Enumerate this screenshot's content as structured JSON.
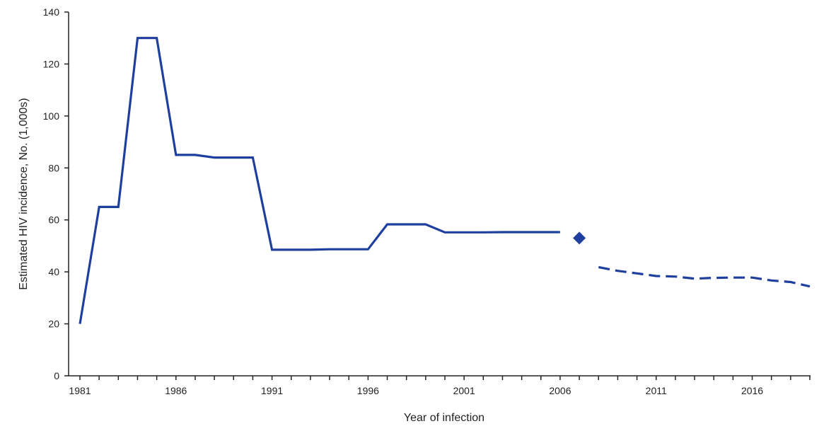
{
  "chart_data": {
    "type": "line",
    "xlabel": "Year of infection",
    "ylabel": "Estimated HIV incidence, No. (1,000s)",
    "xlim": [
      1981,
      2019
    ],
    "ylim": [
      0,
      140
    ],
    "x_ticks": [
      1981,
      1986,
      1991,
      1996,
      2001,
      2006,
      2011,
      2016
    ],
    "x_tick_labels": [
      "1981",
      "1986",
      "1991",
      "1996",
      "2001",
      "2006",
      "2011",
      "2016"
    ],
    "y_ticks": [
      0,
      20,
      40,
      60,
      80,
      100,
      120,
      140
    ],
    "y_tick_labels": [
      "0",
      "20",
      "40",
      "60",
      "80",
      "100",
      "120",
      "140"
    ],
    "grid": false,
    "series": [
      {
        "style": "solid",
        "color": "#1f3f9e",
        "points": [
          {
            "x": 1981,
            "y": 20
          },
          {
            "x": 1982,
            "y": 65
          },
          {
            "x": 1983,
            "y": 65
          },
          {
            "x": 1984,
            "y": 130
          },
          {
            "x": 1985,
            "y": 130
          },
          {
            "x": 1986,
            "y": 85
          },
          {
            "x": 1987,
            "y": 85
          },
          {
            "x": 1988,
            "y": 84
          },
          {
            "x": 1989,
            "y": 84
          },
          {
            "x": 1990,
            "y": 84
          },
          {
            "x": 1991,
            "y": 48.5
          },
          {
            "x": 1992,
            "y": 48.5
          },
          {
            "x": 1993,
            "y": 48.5
          },
          {
            "x": 1994,
            "y": 48.7
          },
          {
            "x": 1995,
            "y": 48.7
          },
          {
            "x": 1996,
            "y": 48.7
          },
          {
            "x": 1997,
            "y": 58.3
          },
          {
            "x": 1998,
            "y": 58.3
          },
          {
            "x": 1999,
            "y": 58.3
          },
          {
            "x": 2000,
            "y": 55.2
          },
          {
            "x": 2001,
            "y": 55.2
          },
          {
            "x": 2002,
            "y": 55.2
          },
          {
            "x": 2003,
            "y": 55.3
          },
          {
            "x": 2004,
            "y": 55.3
          },
          {
            "x": 2005,
            "y": 55.3
          },
          {
            "x": 2006,
            "y": 55.3
          }
        ]
      },
      {
        "style": "marker",
        "marker": "diamond",
        "color": "#1f3f9e",
        "points": [
          {
            "x": 2007,
            "y": 53
          }
        ]
      },
      {
        "style": "dashed",
        "color": "#1f3f9e",
        "points": [
          {
            "x": 2008,
            "y": 41.8
          },
          {
            "x": 2009,
            "y": 40.4
          },
          {
            "x": 2010,
            "y": 39.4
          },
          {
            "x": 2011,
            "y": 38.4
          },
          {
            "x": 2012,
            "y": 38.2
          },
          {
            "x": 2013,
            "y": 37.4
          },
          {
            "x": 2014,
            "y": 37.7
          },
          {
            "x": 2015,
            "y": 37.8
          },
          {
            "x": 2016,
            "y": 37.8
          },
          {
            "x": 2017,
            "y": 36.7
          },
          {
            "x": 2018,
            "y": 36.1
          },
          {
            "x": 2019,
            "y": 34.4
          }
        ]
      }
    ]
  }
}
